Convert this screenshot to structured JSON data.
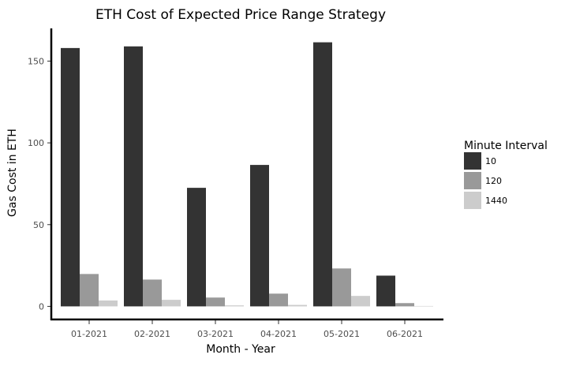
{
  "chart_data": {
    "type": "bar",
    "title": "ETH Cost of Expected Price Range Strategy",
    "xlabel": "Month - Year",
    "ylabel": "Gas Cost in ETH",
    "categories": [
      "01-2021",
      "02-2021",
      "03-2021",
      "04-2021",
      "05-2021",
      "06-2021"
    ],
    "series": [
      {
        "name": "10",
        "color": "#333333",
        "values": [
          158,
          159,
          72.5,
          86.5,
          161.5,
          18.8
        ]
      },
      {
        "name": "120",
        "color": "#999999",
        "values": [
          19.8,
          16.4,
          5.4,
          7.8,
          23.2,
          2.0
        ]
      },
      {
        "name": "1440",
        "color": "#cccccc",
        "values": [
          3.6,
          4.0,
          0.6,
          0.9,
          6.4,
          0.25
        ]
      }
    ],
    "yticks": [
      0,
      50,
      100,
      150
    ],
    "ylim": [
      -8,
      170
    ],
    "grid": false,
    "legend": {
      "title": "Minute Interval",
      "position": "right"
    }
  }
}
